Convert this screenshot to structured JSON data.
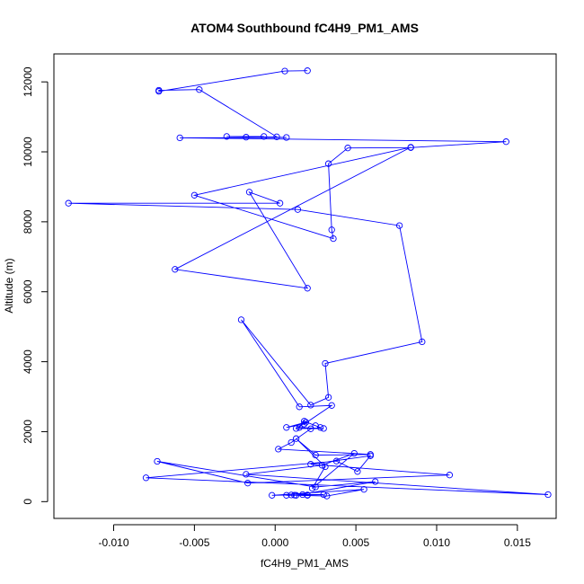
{
  "chart_data": {
    "type": "line",
    "title": "ATOM4 Southbound fC4H9_PM1_AMS",
    "xlabel": "fC4H9_PM1_AMS",
    "ylabel": "Altitude (m)",
    "xlim": [
      -0.0137,
      0.0174
    ],
    "ylim": [
      -480,
      12800
    ],
    "xticks": [
      -0.01,
      -0.005,
      0.0,
      0.005,
      0.01,
      0.015
    ],
    "xtick_labels": [
      "-0.010",
      "-0.005",
      "0.000",
      "0.005",
      "0.010",
      "0.015"
    ],
    "yticks": [
      0,
      2000,
      4000,
      6000,
      8000,
      10000,
      12000
    ],
    "ytick_labels": [
      "0",
      "2000",
      "4000",
      "6000",
      "8000",
      "10000",
      "12000"
    ],
    "grid": false,
    "color": "#0000ff",
    "markers": "open-circle",
    "series": [
      {
        "x": [
          0.0007,
          0.002,
          0.0012,
          0.002,
          0.003,
          0.0017,
          0.001,
          -0.0002,
          0.0055,
          0.0032,
          0.0013,
          0.0062,
          0.0025,
          -0.0073,
          -0.0017,
          0.0108,
          0.0022,
          0.0059,
          0.0051,
          0.0038,
          -0.008,
          0.0169,
          -0.0018,
          0.0029,
          0.0049,
          0.0023,
          0.0031,
          0.0013,
          0.0025,
          0.0059,
          0.0002,
          0.001,
          0.0022,
          0.0028,
          0.0025,
          0.0018,
          0.0015,
          0.003,
          0.0013,
          0.0019,
          0.0007,
          0.0018,
          0.0035,
          0.0015,
          -0.0021,
          0.0022,
          0.0033,
          0.0031,
          0.0091,
          0.0077,
          0.0014,
          -0.0128,
          0.0003,
          -0.0016,
          0.002,
          -0.0062,
          0.0084,
          -0.005,
          0.0036,
          0.0035,
          0.0033,
          0.0045,
          0.0084,
          0.0143,
          -0.0059,
          0.0007,
          -0.003,
          -0.0007,
          -0.0018,
          0.0001,
          -0.0047,
          -0.0072,
          -0.0072,
          0.0006,
          0.002
        ],
        "y": [
          180,
          180,
          185,
          190,
          200,
          200,
          190,
          180,
          350,
          160,
          180,
          570,
          420,
          1150,
          530,
          760,
          1070,
          1310,
          860,
          1160,
          680,
          200,
          780,
          1040,
          1380,
          380,
          1000,
          1800,
          1330,
          1350,
          1500,
          1690,
          2080,
          2120,
          2170,
          2300,
          2120,
          2090,
          2090,
          2270,
          2120,
          2220,
          2750,
          2710,
          5200,
          2760,
          2980,
          3950,
          4570,
          7890,
          8350,
          8530,
          8530,
          8850,
          6100,
          6640,
          10130,
          8760,
          7520,
          7770,
          9660,
          10110,
          10120,
          10290,
          10400,
          10410,
          10440,
          10440,
          10420,
          10430,
          11780,
          11760,
          11730,
          12310,
          12320
        ]
      }
    ]
  }
}
